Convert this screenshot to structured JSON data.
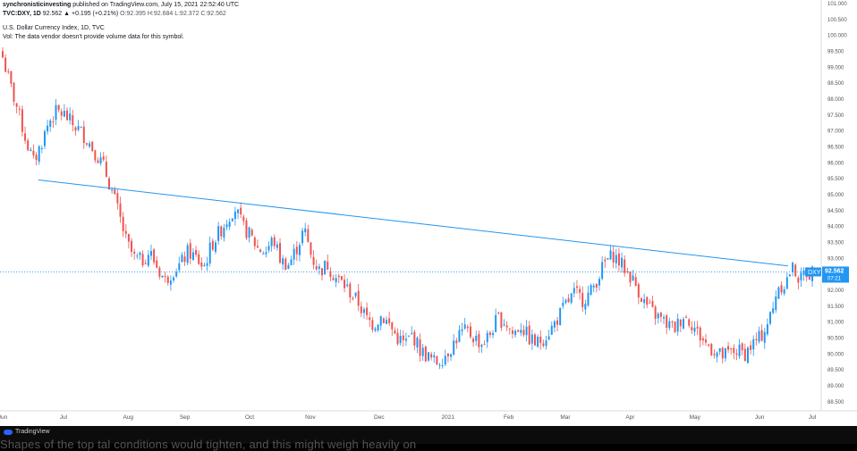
{
  "header": {
    "line1_author": "synchronisticinvesting",
    "line1_rest": "published on TradingView.com, July 15, 2021 22:52:40 UTC",
    "symbol": "TVC:DXY, 1D",
    "last": "92.562",
    "change": "▲ +0.195 (+0.21%)",
    "ohlc": "O:92.395 H:92.684 L:92.372 C:92.562",
    "title": "U.S. Dollar Currency Index, 1D, TVC",
    "vol_note": "Vol: The data vendor doesn't provide volume data for this symbol."
  },
  "footer": {
    "logo_text": "TradingView",
    "caption": "Shapes of the top tal conditions would tighten, and this might weigh heavily on"
  },
  "colors": {
    "up": "#2196f3",
    "down": "#ef5350",
    "trendline": "#2196f3",
    "price_line": "#2196f3",
    "label_bg": "#2196f3"
  },
  "chart_data": {
    "type": "candlestick",
    "title": "U.S. Dollar Currency Index, 1D, TVC",
    "y_axis": {
      "ticks": [
        "101.000",
        "100.500",
        "100.000",
        "99.500",
        "99.000",
        "98.500",
        "98.000",
        "97.500",
        "97.000",
        "96.500",
        "96.000",
        "95.500",
        "95.000",
        "94.500",
        "94.000",
        "93.500",
        "93.000",
        "92.500",
        "92.000",
        "91.500",
        "91.000",
        "90.500",
        "90.000",
        "89.500",
        "89.000",
        "88.500"
      ],
      "range": [
        88.2,
        101.1
      ]
    },
    "x_axis": {
      "ticks": [
        "Jun",
        "Jul",
        "Aug",
        "Sep",
        "Oct",
        "Nov",
        "Dec",
        "2021",
        "Feb",
        "Mar",
        "Apr",
        "May",
        "Jun",
        "Jul"
      ],
      "tick_positions": [
        0.0,
        0.075,
        0.155,
        0.225,
        0.305,
        0.38,
        0.465,
        0.55,
        0.625,
        0.695,
        0.775,
        0.855,
        0.935,
        1.0
      ]
    },
    "price_label": {
      "series": "DXY",
      "value": "92.562",
      "countdown": "07:21"
    },
    "last_price": 92.562,
    "trendline": {
      "start_value": 95.45,
      "end_value": 92.75,
      "start_frac": 0.044,
      "end_frac": 0.97
    },
    "close_path": [
      [
        0.0,
        99.3
      ],
      [
        0.01,
        98.4
      ],
      [
        0.02,
        97.6
      ],
      [
        0.03,
        96.7
      ],
      [
        0.04,
        96.0
      ],
      [
        0.05,
        96.6
      ],
      [
        0.06,
        97.3
      ],
      [
        0.07,
        97.6
      ],
      [
        0.08,
        97.5
      ],
      [
        0.09,
        97.2
      ],
      [
        0.1,
        97.0
      ],
      [
        0.11,
        96.7
      ],
      [
        0.12,
        96.3
      ],
      [
        0.13,
        95.9
      ],
      [
        0.14,
        95.2
      ],
      [
        0.15,
        94.4
      ],
      [
        0.16,
        93.5
      ],
      [
        0.17,
        93.0
      ],
      [
        0.18,
        92.9
      ],
      [
        0.19,
        93.2
      ],
      [
        0.2,
        92.7
      ],
      [
        0.21,
        92.3
      ],
      [
        0.22,
        92.6
      ],
      [
        0.23,
        92.8
      ],
      [
        0.24,
        93.2
      ],
      [
        0.25,
        93.0
      ],
      [
        0.26,
        92.7
      ],
      [
        0.27,
        93.4
      ],
      [
        0.28,
        93.8
      ],
      [
        0.29,
        94.2
      ],
      [
        0.3,
        94.6
      ],
      [
        0.31,
        94.0
      ],
      [
        0.32,
        93.7
      ],
      [
        0.33,
        93.3
      ],
      [
        0.34,
        93.2
      ],
      [
        0.35,
        93.6
      ],
      [
        0.36,
        92.9
      ],
      [
        0.37,
        92.8
      ],
      [
        0.38,
        93.3
      ],
      [
        0.39,
        93.9
      ],
      [
        0.4,
        93.0
      ],
      [
        0.41,
        92.6
      ],
      [
        0.42,
        92.8
      ],
      [
        0.43,
        92.4
      ],
      [
        0.44,
        92.2
      ],
      [
        0.45,
        91.9
      ],
      [
        0.46,
        91.6
      ],
      [
        0.47,
        91.1
      ],
      [
        0.48,
        90.9
      ],
      [
        0.49,
        91.2
      ],
      [
        0.5,
        90.9
      ],
      [
        0.51,
        90.5
      ],
      [
        0.52,
        90.3
      ],
      [
        0.53,
        90.6
      ],
      [
        0.54,
        90.1
      ],
      [
        0.55,
        89.9
      ],
      [
        0.56,
        89.7
      ],
      [
        0.57,
        89.9
      ],
      [
        0.58,
        90.2
      ],
      [
        0.59,
        90.6
      ],
      [
        0.6,
        90.7
      ],
      [
        0.61,
        90.5
      ],
      [
        0.62,
        90.3
      ],
      [
        0.63,
        90.6
      ],
      [
        0.64,
        91.1
      ],
      [
        0.65,
        91.0
      ],
      [
        0.66,
        90.6
      ],
      [
        0.67,
        90.9
      ],
      [
        0.68,
        90.5
      ],
      [
        0.69,
        90.3
      ],
      [
        0.7,
        90.5
      ],
      [
        0.71,
        90.8
      ],
      [
        0.72,
        91.2
      ],
      [
        0.73,
        91.6
      ],
      [
        0.74,
        91.9
      ],
      [
        0.75,
        91.7
      ],
      [
        0.76,
        91.9
      ],
      [
        0.77,
        92.4
      ],
      [
        0.78,
        92.9
      ],
      [
        0.79,
        93.1
      ],
      [
        0.8,
        92.8
      ],
      [
        0.81,
        92.5
      ],
      [
        0.82,
        92.1
      ],
      [
        0.83,
        91.6
      ],
      [
        0.84,
        91.3
      ],
      [
        0.85,
        91.1
      ],
      [
        0.86,
        90.9
      ],
      [
        0.87,
        90.8
      ],
      [
        0.88,
        91.2
      ],
      [
        0.89,
        91.0
      ],
      [
        0.9,
        90.6
      ],
      [
        0.91,
        90.3
      ],
      [
        0.92,
        90.1
      ],
      [
        0.93,
        89.9
      ],
      [
        0.94,
        90.0
      ],
      [
        0.95,
        90.1
      ],
      [
        0.96,
        90.0
      ],
      [
        0.97,
        90.3
      ],
      [
        0.98,
        90.5
      ],
      [
        0.99,
        91.0
      ],
      [
        1.0,
        91.6
      ]
    ],
    "close_path_tail": [
      [
        0.0,
        91.9
      ],
      [
        0.1,
        92.2
      ],
      [
        0.2,
        92.1
      ],
      [
        0.3,
        92.3
      ],
      [
        0.4,
        92.6
      ],
      [
        0.5,
        92.7
      ],
      [
        0.6,
        92.4
      ],
      [
        0.7,
        92.3
      ],
      [
        0.8,
        92.6
      ],
      [
        0.9,
        92.5
      ],
      [
        1.0,
        92.56
      ]
    ]
  }
}
